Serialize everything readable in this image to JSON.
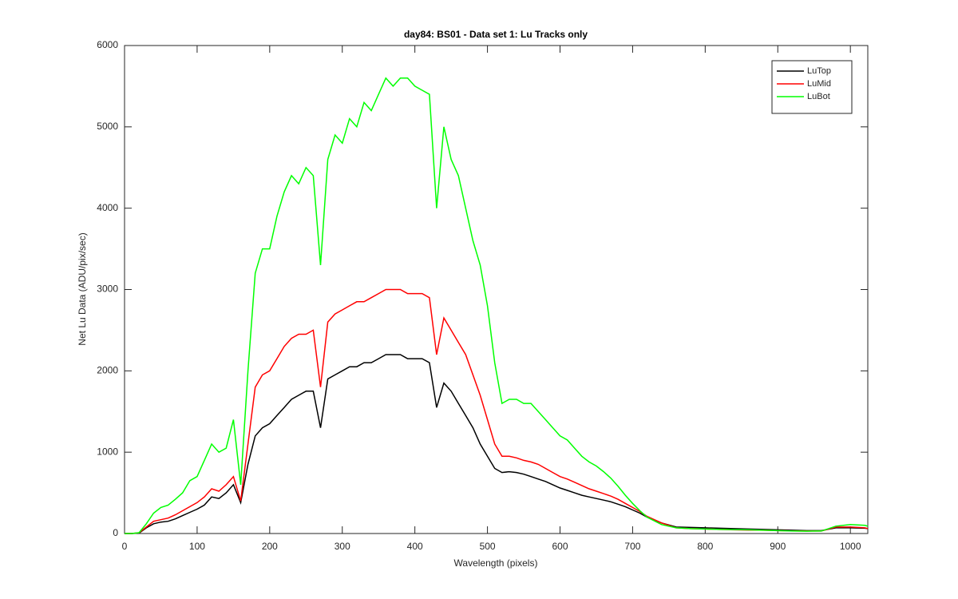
{
  "chart_data": {
    "type": "line",
    "title": "day84: BS01 - Data set 1: Lu Tracks only",
    "x_label": "Wavelength (pixels)",
    "y_label": "Net Lu Data (ADU/pix/sec)",
    "x": [
      0,
      10,
      20,
      30,
      40,
      50,
      60,
      70,
      80,
      90,
      100,
      110,
      120,
      130,
      140,
      150,
      160,
      170,
      180,
      190,
      200,
      210,
      220,
      230,
      240,
      250,
      260,
      270,
      280,
      290,
      300,
      310,
      320,
      330,
      340,
      350,
      360,
      370,
      380,
      390,
      400,
      410,
      420,
      430,
      440,
      450,
      460,
      470,
      480,
      490,
      500,
      510,
      520,
      530,
      540,
      550,
      560,
      570,
      580,
      590,
      600,
      610,
      620,
      630,
      640,
      650,
      660,
      670,
      680,
      690,
      700,
      710,
      720,
      740,
      760,
      780,
      800,
      820,
      840,
      860,
      880,
      900,
      920,
      940,
      960,
      980,
      1000,
      1020,
      1024
    ],
    "series": [
      {
        "name": "LuTop",
        "color": "#000000",
        "values": [
          0,
          0,
          5,
          70,
          120,
          140,
          150,
          180,
          220,
          260,
          300,
          350,
          450,
          430,
          500,
          600,
          380,
          850,
          1200,
          1300,
          1350,
          1450,
          1550,
          1650,
          1700,
          1750,
          1750,
          1300,
          1900,
          1950,
          2000,
          2050,
          2050,
          2100,
          2100,
          2150,
          2200,
          2200,
          2200,
          2150,
          2150,
          2150,
          2100,
          1550,
          1850,
          1750,
          1600,
          1450,
          1300,
          1100,
          950,
          800,
          750,
          760,
          750,
          730,
          700,
          670,
          640,
          600,
          560,
          530,
          500,
          470,
          450,
          430,
          410,
          390,
          360,
          330,
          290,
          250,
          200,
          130,
          80,
          75,
          70,
          65,
          60,
          55,
          50,
          45,
          40,
          35,
          35,
          70,
          70,
          65,
          60
        ]
      },
      {
        "name": "LuMid",
        "color": "#ff0000",
        "values": [
          0,
          0,
          10,
          80,
          150,
          170,
          190,
          230,
          280,
          330,
          380,
          450,
          550,
          520,
          600,
          700,
          400,
          1100,
          1800,
          1950,
          2000,
          2150,
          2300,
          2400,
          2450,
          2450,
          2500,
          1800,
          2600,
          2700,
          2750,
          2800,
          2850,
          2850,
          2900,
          2950,
          3000,
          3000,
          3000,
          2950,
          2950,
          2950,
          2900,
          2200,
          2650,
          2500,
          2350,
          2200,
          1950,
          1700,
          1400,
          1100,
          950,
          950,
          930,
          900,
          880,
          850,
          800,
          750,
          700,
          670,
          630,
          590,
          550,
          520,
          490,
          460,
          420,
          370,
          320,
          270,
          210,
          130,
          70,
          60,
          55,
          50,
          45,
          42,
          40,
          35,
          32,
          30,
          30,
          80,
          80,
          70,
          60
        ]
      },
      {
        "name": "LuBot",
        "color": "#00ff00",
        "values": [
          0,
          0,
          10,
          120,
          250,
          320,
          350,
          420,
          500,
          650,
          700,
          900,
          1100,
          1000,
          1050,
          1400,
          600,
          2000,
          3200,
          3500,
          3500,
          3900,
          4200,
          4400,
          4300,
          4500,
          4400,
          3300,
          4600,
          4900,
          4800,
          5100,
          5000,
          5300,
          5200,
          5400,
          5600,
          5500,
          5600,
          5600,
          5500,
          5450,
          5400,
          4000,
          5000,
          4600,
          4400,
          4000,
          3600,
          3300,
          2800,
          2100,
          1600,
          1650,
          1650,
          1600,
          1600,
          1500,
          1400,
          1300,
          1200,
          1150,
          1050,
          950,
          880,
          830,
          760,
          680,
          580,
          470,
          370,
          280,
          200,
          110,
          70,
          60,
          55,
          50,
          48,
          45,
          40,
          35,
          30,
          28,
          30,
          90,
          110,
          100,
          90
        ]
      }
    ],
    "xlim": [
      0,
      1024
    ],
    "xticks": [
      0,
      100,
      200,
      300,
      400,
      500,
      600,
      700,
      800,
      900,
      1000
    ],
    "ylim": [
      0,
      6000
    ],
    "yticks": [
      0,
      1000,
      2000,
      3000,
      4000,
      5000,
      6000
    ],
    "legend": "upper right",
    "grid": false
  }
}
